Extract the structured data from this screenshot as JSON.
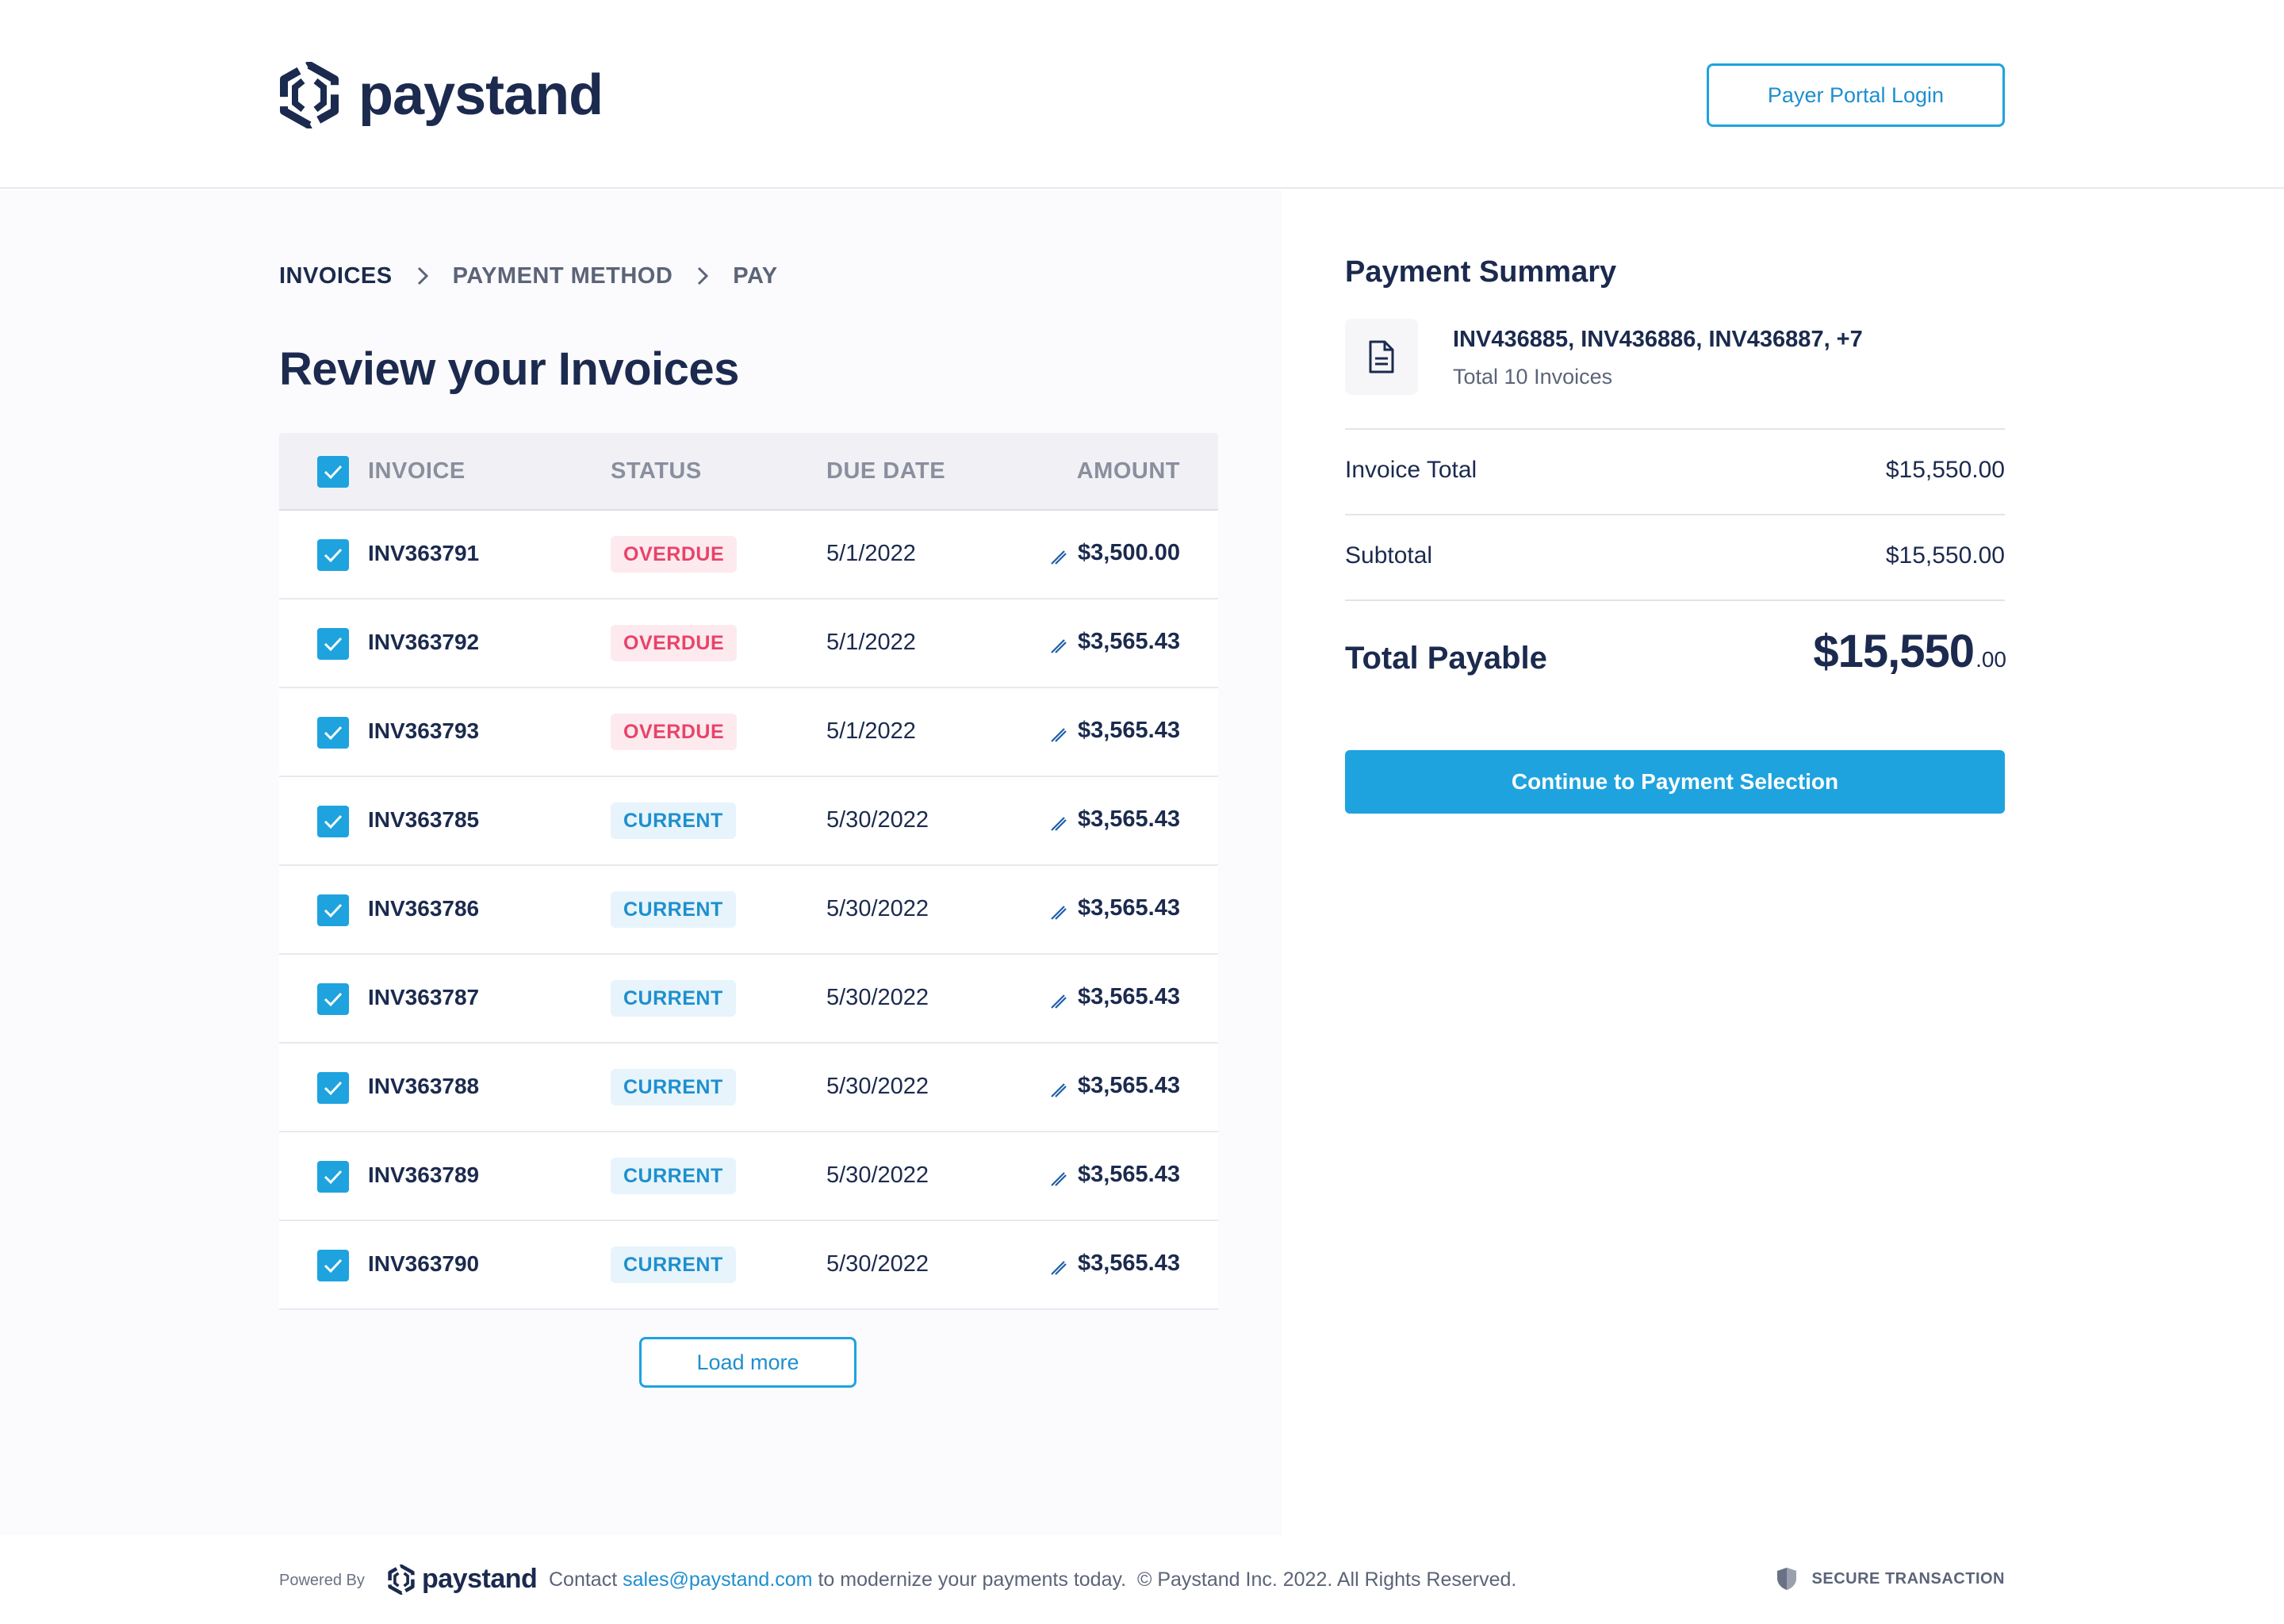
{
  "header": {
    "logo_text": "paystand",
    "portal_button": "Payer Portal Login"
  },
  "breadcrumb": [
    "INVOICES",
    "PAYMENT METHOD",
    "PAY"
  ],
  "page_title": "Review your Invoices",
  "table": {
    "columns": [
      "INVOICE",
      "STATUS",
      "DUE DATE",
      "AMOUNT"
    ],
    "rows": [
      {
        "invoice": "INV363791",
        "status": "OVERDUE",
        "status_type": "overdue",
        "due": "5/1/2022",
        "amount": "$3,500.00"
      },
      {
        "invoice": "INV363792",
        "status": "OVERDUE",
        "status_type": "overdue",
        "due": "5/1/2022",
        "amount": "$3,565.43"
      },
      {
        "invoice": "INV363793",
        "status": "OVERDUE",
        "status_type": "overdue",
        "due": "5/1/2022",
        "amount": "$3,565.43"
      },
      {
        "invoice": "INV363785",
        "status": "CURRENT",
        "status_type": "current",
        "due": "5/30/2022",
        "amount": "$3,565.43"
      },
      {
        "invoice": "INV363786",
        "status": "CURRENT",
        "status_type": "current",
        "due": "5/30/2022",
        "amount": "$3,565.43"
      },
      {
        "invoice": "INV363787",
        "status": "CURRENT",
        "status_type": "current",
        "due": "5/30/2022",
        "amount": "$3,565.43"
      },
      {
        "invoice": "INV363788",
        "status": "CURRENT",
        "status_type": "current",
        "due": "5/30/2022",
        "amount": "$3,565.43"
      },
      {
        "invoice": "INV363789",
        "status": "CURRENT",
        "status_type": "current",
        "due": "5/30/2022",
        "amount": "$3,565.43"
      },
      {
        "invoice": "INV363790",
        "status": "CURRENT",
        "status_type": "current",
        "due": "5/30/2022",
        "amount": "$3,565.43"
      }
    ],
    "load_more": "Load more"
  },
  "summary": {
    "title": "Payment Summary",
    "invoice_list": "INV436885, INV436886, INV436887, +7",
    "invoice_count": "Total 10 Invoices",
    "invoice_total_label": "Invoice Total",
    "invoice_total_value": "$15,550.00",
    "subtotal_label": "Subtotal",
    "subtotal_value": "$15,550.00",
    "total_label": "Total Payable",
    "total_main": "$15,550",
    "total_cents": ".00",
    "cta": "Continue to Payment Selection"
  },
  "footer": {
    "powered_by": "Powered By",
    "logo_text": "paystand",
    "contact_prefix": "Contact ",
    "contact_email": "sales@paystand.com",
    "contact_suffix": " to modernize your payments today.  © Paystand Inc. 2022. All Rights Reserved.",
    "secure": "SECURE TRANSACTION"
  },
  "colors": {
    "brand_navy": "#1b2a4e",
    "accent_blue": "#1ea3de",
    "overdue_red": "#e8436a",
    "current_blue": "#1e8fce"
  },
  "icons": [
    "paystand-logo-icon",
    "chevron-right-icon",
    "checkbox-checked-icon",
    "pencil-icon",
    "document-icon",
    "shield-icon"
  ]
}
